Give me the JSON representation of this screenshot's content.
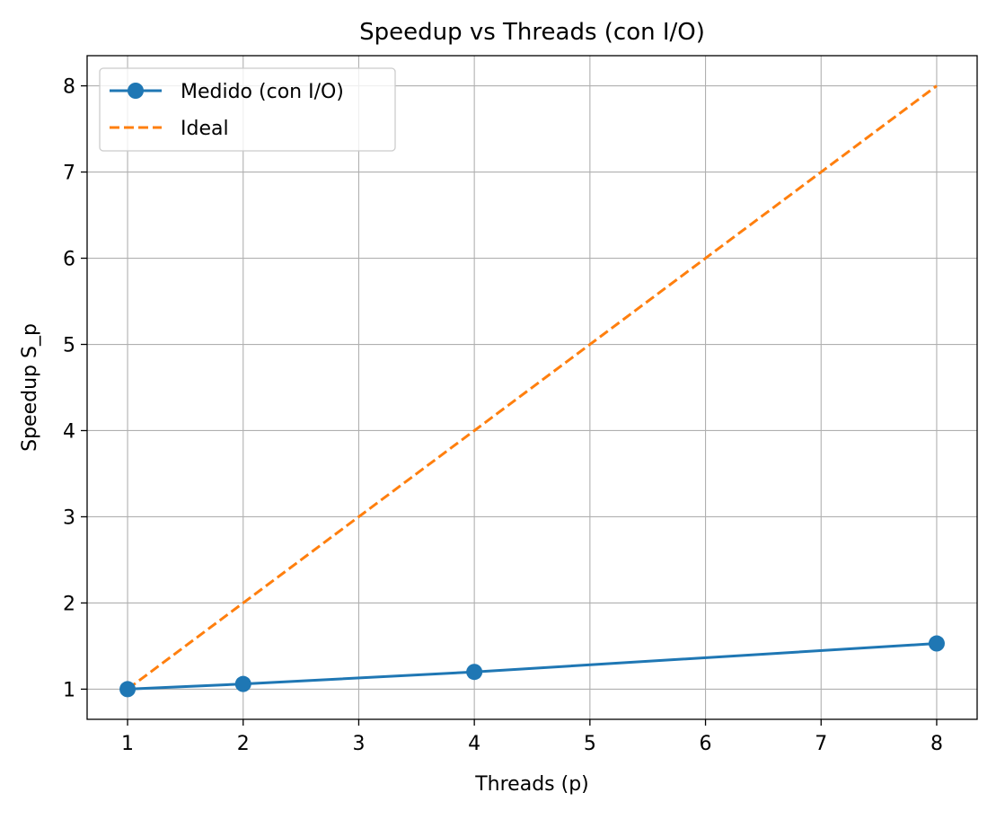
{
  "chart_data": {
    "type": "line",
    "title": "Speedup vs Threads (con I/O)",
    "xlabel": "Threads (p)",
    "ylabel": "Speedup S_p",
    "xlim": [
      0.65,
      8.35
    ],
    "ylim": [
      0.65,
      8.35
    ],
    "xticks": [
      1,
      2,
      3,
      4,
      5,
      6,
      7,
      8
    ],
    "yticks": [
      1,
      2,
      3,
      4,
      5,
      6,
      7,
      8
    ],
    "grid": true,
    "legend_position": "top-left",
    "series": [
      {
        "name": "Medido (con I/O)",
        "style": "solid",
        "marker": "circle",
        "color": "#1f77b4",
        "x": [
          1,
          2,
          4,
          8
        ],
        "y": [
          1.0,
          1.06,
          1.2,
          1.53
        ]
      },
      {
        "name": "Ideal",
        "style": "dashed",
        "marker": "none",
        "color": "#ff7f0e",
        "x": [
          1,
          2,
          4,
          8
        ],
        "y": [
          1,
          2,
          4,
          8
        ]
      }
    ]
  }
}
